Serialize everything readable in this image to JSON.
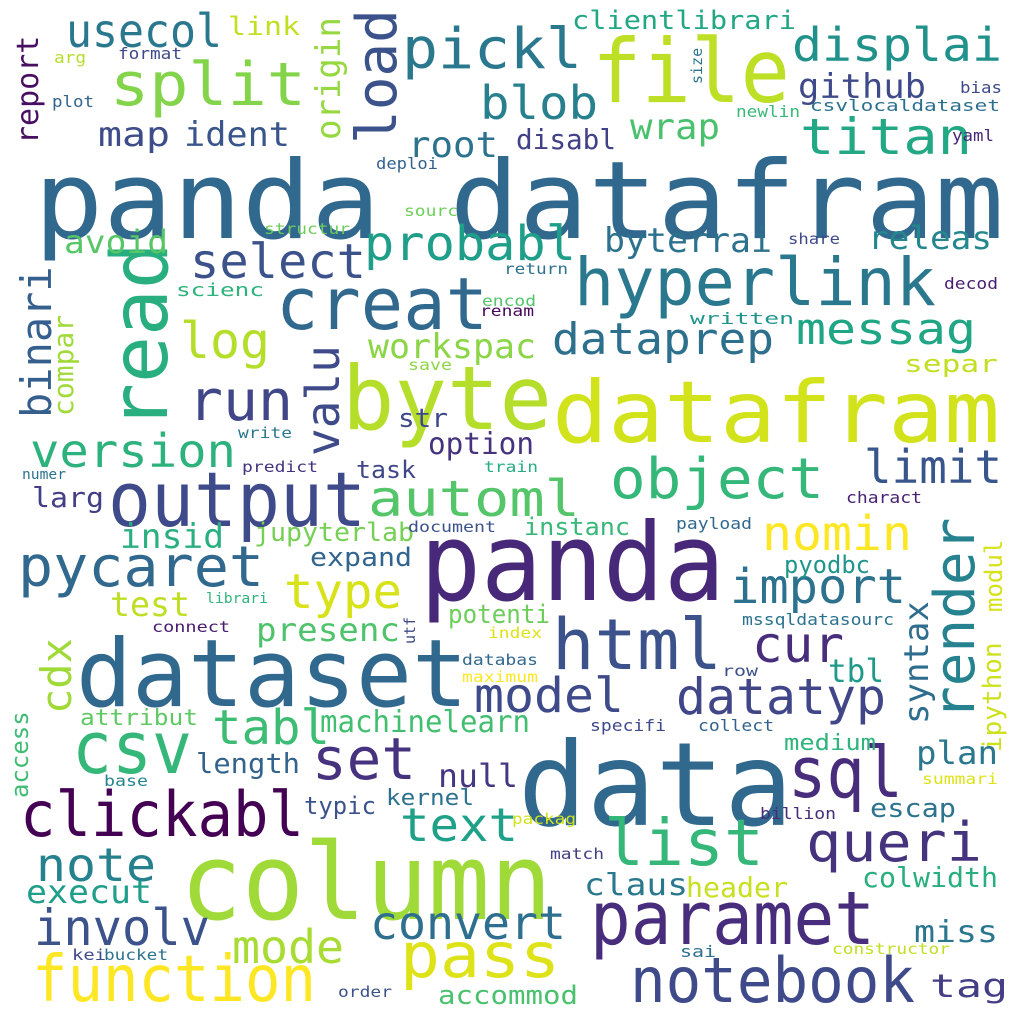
{
  "title": "",
  "colors": {
    "background": "#ffffff",
    "palette": [
      "#440154",
      "#482878",
      "#3e4a89",
      "#31688e",
      "#26828e",
      "#1f9e89",
      "#35b779",
      "#6ece58",
      "#b5de2b",
      "#fde725"
    ]
  },
  "words": [
    {
      "text": "panda dataframe",
      "label": "panda datafram",
      "color": "#31688e"
    },
    {
      "text": "panda",
      "color": "#482878"
    },
    {
      "text": "data",
      "color": "#31688e"
    },
    {
      "text": "column",
      "color": "#a0da39"
    },
    {
      "text": "bytes",
      "label": "byte",
      "color": "#b5de2b"
    },
    {
      "text": "dataframe",
      "label": "datafram",
      "color": "#d2e21b"
    },
    {
      "text": "dataset",
      "color": "#31688e"
    },
    {
      "text": "file",
      "color": "#bddf26"
    },
    {
      "text": "output",
      "color": "#3e4a89"
    },
    {
      "text": "paramet",
      "color": "#472d7b"
    },
    {
      "text": "creat",
      "color": "#31688e"
    },
    {
      "text": "hyperlink",
      "color": "#2a788e"
    },
    {
      "text": "read",
      "color": "#29af7f"
    },
    {
      "text": "csv",
      "color": "#35b779"
    },
    {
      "text": "sql",
      "color": "#472d7b"
    },
    {
      "text": "html",
      "color": "#3b528b"
    },
    {
      "text": "render",
      "color": "#26828e"
    },
    {
      "text": "function",
      "color": "#fde725"
    },
    {
      "text": "notebook",
      "color": "#3e4a89"
    },
    {
      "text": "pass",
      "color": "#dde318"
    },
    {
      "text": "list",
      "color": "#35b779"
    },
    {
      "text": "clickabl",
      "color": "#440154"
    },
    {
      "text": "pycaret",
      "color": "#31688e"
    },
    {
      "text": "split",
      "color": "#84d44b"
    },
    {
      "text": "pickl",
      "color": "#2a788e"
    },
    {
      "text": "load",
      "color": "#3b528b"
    },
    {
      "text": "automl",
      "color": "#54c568"
    },
    {
      "text": "object",
      "color": "#35b779"
    },
    {
      "text": "titan",
      "color": "#22a884"
    },
    {
      "text": "displai",
      "color": "#21918c"
    },
    {
      "text": "blob",
      "color": "#27808e"
    },
    {
      "text": "usecol",
      "color": "#2a788e"
    },
    {
      "text": "probabl",
      "color": "#1f9e89"
    },
    {
      "text": "select",
      "color": "#3b528b"
    },
    {
      "text": "run",
      "color": "#404688"
    },
    {
      "text": "log",
      "color": "#b5de2b"
    },
    {
      "text": "messag",
      "color": "#21a685"
    },
    {
      "text": "dataprep",
      "color": "#2d708e"
    },
    {
      "text": "version",
      "color": "#2db27d"
    },
    {
      "text": "valu",
      "color": "#3e4a89"
    },
    {
      "text": "limit",
      "color": "#39568c"
    },
    {
      "text": "nomin",
      "color": "#fde725"
    },
    {
      "text": "import",
      "color": "#2c728e"
    },
    {
      "text": "type",
      "color": "#d8e219"
    },
    {
      "text": "model",
      "color": "#3e4a89"
    },
    {
      "text": "datatyp",
      "color": "#404688"
    },
    {
      "text": "cur",
      "color": "#472d7b"
    },
    {
      "text": "tabl",
      "color": "#3dbc74"
    },
    {
      "text": "set",
      "color": "#46327e"
    },
    {
      "text": "queri",
      "color": "#46337e"
    },
    {
      "text": "text",
      "color": "#1fa088"
    },
    {
      "text": "note",
      "color": "#26818e"
    },
    {
      "text": "convert",
      "color": "#2e6e8e"
    },
    {
      "text": "involv",
      "color": "#3b528b"
    },
    {
      "text": "mode",
      "color": "#a8db34"
    },
    {
      "text": "binari",
      "color": "#355f8d"
    },
    {
      "text": "cdx",
      "color": "#a0da39"
    },
    {
      "text": "syntax",
      "color": "#2e6d8e"
    },
    {
      "text": "github",
      "color": "#3e4a89"
    },
    {
      "text": "ident",
      "color": "#39568c"
    },
    {
      "text": "map",
      "color": "#3e4c8a"
    },
    {
      "text": "origin",
      "color": "#95d840"
    },
    {
      "text": "report",
      "color": "#470e61"
    },
    {
      "text": "wrap",
      "color": "#4ac16d"
    },
    {
      "text": "root",
      "color": "#2c738e"
    },
    {
      "text": "disabl",
      "color": "#424086"
    },
    {
      "text": "byterrai",
      "color": "#2c728e"
    },
    {
      "text": "releas",
      "color": "#24878e"
    },
    {
      "text": "avoid",
      "color": "#56c667"
    },
    {
      "text": "compar",
      "color": "#a0da39"
    },
    {
      "text": "workspac",
      "color": "#8bd646"
    },
    {
      "text": "str",
      "color": "#3e4989"
    },
    {
      "text": "option",
      "color": "#46337e"
    },
    {
      "text": "insid",
      "color": "#2ab07f"
    },
    {
      "text": "larg",
      "color": "#433e85"
    },
    {
      "text": "task",
      "color": "#3f4788"
    },
    {
      "text": "jupyterlab",
      "color": "#75d054"
    },
    {
      "text": "instanc",
      "color": "#37b878"
    },
    {
      "text": "expand",
      "color": "#32658e"
    },
    {
      "text": "test",
      "color": "#bddf26"
    },
    {
      "text": "presenc",
      "color": "#4ec36b"
    },
    {
      "text": "potenti",
      "color": "#6ccd5a"
    },
    {
      "text": "pyodbc",
      "color": "#1f958b"
    },
    {
      "text": "modul",
      "color": "#d5e21a"
    },
    {
      "text": "ipython",
      "color": "#cde11d"
    },
    {
      "text": "tbl",
      "color": "#1f9a8a"
    },
    {
      "text": "machinelearn",
      "color": "#42be71"
    },
    {
      "text": "length",
      "color": "#33638d"
    },
    {
      "text": "plan",
      "color": "#2a778e"
    },
    {
      "text": "null",
      "color": "#453781"
    },
    {
      "text": "attribut",
      "color": "#5ec962"
    },
    {
      "text": "medium",
      "color": "#2fb47c"
    },
    {
      "text": "access",
      "color": "#3fbc73"
    },
    {
      "text": "typic",
      "color": "#3b528b"
    },
    {
      "text": "kernel",
      "color": "#2c728e"
    },
    {
      "text": "escap",
      "color": "#2c738e"
    },
    {
      "text": "execut",
      "color": "#1f9e89"
    },
    {
      "text": "claus",
      "color": "#2a788e"
    },
    {
      "text": "header",
      "color": "#c8e020"
    },
    {
      "text": "colwidth",
      "color": "#29af7f"
    },
    {
      "text": "miss",
      "color": "#2a768e"
    },
    {
      "text": "accommod",
      "color": "#4ac16d"
    },
    {
      "text": "tag",
      "color": "#433e85"
    },
    {
      "text": "clientlibrari",
      "color": "#22a785"
    },
    {
      "text": "link",
      "color": "#c2df23"
    },
    {
      "text": "format",
      "color": "#3e4a89"
    },
    {
      "text": "arg",
      "color": "#b5de2b"
    },
    {
      "text": "plot",
      "color": "#32648e"
    },
    {
      "text": "size",
      "color": "#2c738e"
    },
    {
      "text": "bias",
      "color": "#3e4a89"
    },
    {
      "text": "newlin",
      "color": "#38b977"
    },
    {
      "text": "csvlocaldataset",
      "color": "#2d708e"
    },
    {
      "text": "yaml",
      "color": "#482878"
    },
    {
      "text": "deploi",
      "color": "#33638d"
    },
    {
      "text": "sourc",
      "color": "#6ece58"
    },
    {
      "text": "structur",
      "color": "#6ccd5a"
    },
    {
      "text": "share",
      "color": "#3e4a89"
    },
    {
      "text": "return",
      "color": "#2c718e"
    },
    {
      "text": "decod",
      "color": "#481f70"
    },
    {
      "text": "scienc",
      "color": "#2eb37c"
    },
    {
      "text": "encod",
      "color": "#52c569"
    },
    {
      "text": "renam",
      "color": "#46085c"
    },
    {
      "text": "written",
      "color": "#1f958b"
    },
    {
      "text": "separ",
      "color": "#c2df23"
    },
    {
      "text": "save",
      "color": "#8ed645"
    },
    {
      "text": "write",
      "color": "#2a788e"
    },
    {
      "text": "predict",
      "color": "#46337e"
    },
    {
      "text": "train",
      "color": "#26ad81"
    },
    {
      "text": "numer",
      "color": "#2c728e"
    },
    {
      "text": "charact",
      "color": "#482173"
    },
    {
      "text": "document",
      "color": "#3b528b"
    },
    {
      "text": "payload",
      "color": "#31688e"
    },
    {
      "text": "librari",
      "color": "#2fb47c"
    },
    {
      "text": "connect",
      "color": "#481b6d"
    },
    {
      "text": "utf",
      "color": "#3e4a89"
    },
    {
      "text": "mssqldatasourc",
      "color": "#2c728e"
    },
    {
      "text": "index",
      "color": "#dde318"
    },
    {
      "text": "databas",
      "color": "#31688e"
    },
    {
      "text": "maximum",
      "color": "#fde725"
    },
    {
      "text": "row",
      "color": "#3b528b"
    },
    {
      "text": "specifi",
      "color": "#3e4a89"
    },
    {
      "text": "collect",
      "color": "#33638d"
    },
    {
      "text": "base",
      "color": "#25848e"
    },
    {
      "text": "summari",
      "color": "#dde318"
    },
    {
      "text": "billion",
      "color": "#472c7a"
    },
    {
      "text": "packag",
      "color": "#d2e21b"
    },
    {
      "text": "match",
      "color": "#424086"
    },
    {
      "text": "kei",
      "color": "#3e4a89"
    },
    {
      "text": "bucket",
      "color": "#2c728e"
    },
    {
      "text": "sai",
      "color": "#2c728e"
    },
    {
      "text": "constructor",
      "color": "#c2df23"
    },
    {
      "text": "order",
      "color": "#3b528b"
    }
  ]
}
